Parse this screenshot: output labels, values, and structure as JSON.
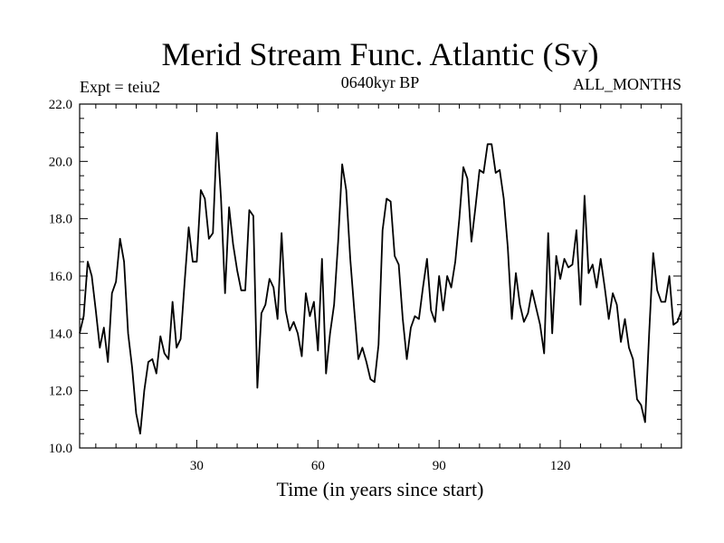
{
  "chart_data": {
    "type": "line",
    "title": "Merid Stream Func. Atlantic (Sv)",
    "subtitle_left": "Expt = teiu2",
    "subtitle_center": "0640kyr BP",
    "subtitle_right": "ALL_MONTHS",
    "xlabel": "Time (in years since start)",
    "ylabel": "",
    "xlim": [
      1,
      150
    ],
    "ylim": [
      10,
      22
    ],
    "x_ticks": [
      30,
      60,
      90,
      120
    ],
    "x_tick_labels": [
      "30",
      "60",
      "90",
      "120"
    ],
    "y_ticks": [
      10,
      12,
      14,
      16,
      18,
      20,
      22
    ],
    "y_tick_labels": [
      "10.0",
      "12.0",
      "14.0",
      "16.0",
      "18.0",
      "20.0",
      "22.0"
    ],
    "grid": false,
    "series": [
      {
        "name": "Merid Stream Func. Atlantic",
        "x_start": 1,
        "x_step": 1,
        "values": [
          14.0,
          14.6,
          16.5,
          16.0,
          14.8,
          13.5,
          14.2,
          13.0,
          15.4,
          15.8,
          17.3,
          16.5,
          14.0,
          12.8,
          11.2,
          10.5,
          12.0,
          13.0,
          13.1,
          12.6,
          13.9,
          13.3,
          13.1,
          15.1,
          13.5,
          13.8,
          15.8,
          17.7,
          16.5,
          16.5,
          19.0,
          18.7,
          17.3,
          17.5,
          21.0,
          18.7,
          15.4,
          18.4,
          17.1,
          16.2,
          15.5,
          15.5,
          18.3,
          18.1,
          12.1,
          14.7,
          15.0,
          15.9,
          15.6,
          14.5,
          17.5,
          14.8,
          14.1,
          14.4,
          14.0,
          13.2,
          15.4,
          14.6,
          15.1,
          13.4,
          16.6,
          12.6,
          14.0,
          15.0,
          17.2,
          19.9,
          19.0,
          16.6,
          14.8,
          13.1,
          13.5,
          13.0,
          12.4,
          12.3,
          13.6,
          17.6,
          18.7,
          18.6,
          16.7,
          16.4,
          14.5,
          13.1,
          14.2,
          14.6,
          14.5,
          15.6,
          16.6,
          14.8,
          14.4,
          16.0,
          14.8,
          16.0,
          15.6,
          16.5,
          18.0,
          19.8,
          19.4,
          17.2,
          18.4,
          19.7,
          19.6,
          20.6,
          20.6,
          19.6,
          19.7,
          18.7,
          17.0,
          14.5,
          16.1,
          15.0,
          14.4,
          14.7,
          15.5,
          14.9,
          14.3,
          13.3,
          17.5,
          14.0,
          16.7,
          15.9,
          16.6,
          16.3,
          16.4,
          17.6,
          15.0,
          18.8,
          16.1,
          16.4,
          15.6,
          16.6,
          15.6,
          14.5,
          15.4,
          15.0,
          13.7,
          14.5,
          13.5,
          13.1,
          11.7,
          11.5,
          10.9,
          14.0,
          16.8,
          15.5,
          15.1,
          15.1,
          16.0,
          14.3,
          14.4,
          14.8
        ]
      }
    ],
    "colors": {
      "line": "#000000",
      "axis": "#000000",
      "background": "#ffffff"
    }
  }
}
